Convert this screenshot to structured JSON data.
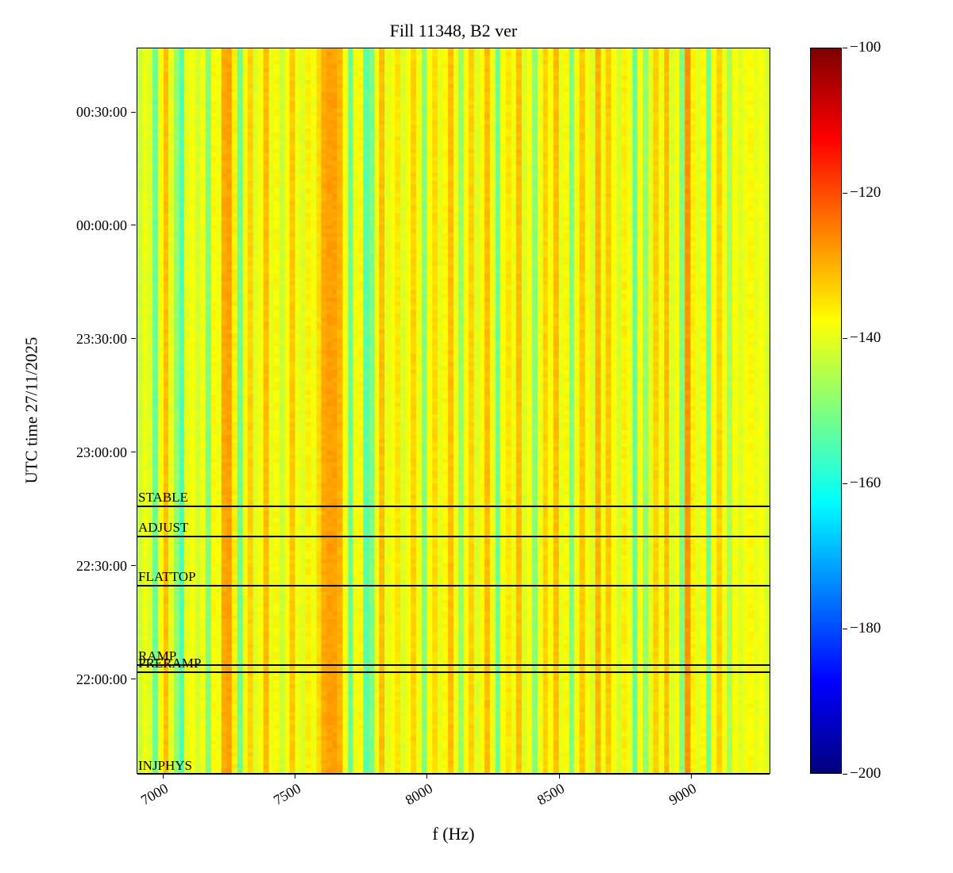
{
  "chart_data": {
    "type": "heatmap",
    "title": "Fill 11348, B2 ver",
    "xlabel": "f (Hz)",
    "ylabel": "UTC time 27/11/2025",
    "x_range_hz": [
      6900,
      9300
    ],
    "x_ticks": [
      7000,
      7500,
      8000,
      8500,
      9000
    ],
    "y_range": [
      "21:35:00",
      "00:47:00"
    ],
    "y_ticks": [
      "22:00:00",
      "22:30:00",
      "23:00:00",
      "23:30:00",
      "00:00:00",
      "00:30:00"
    ],
    "colormap": "jet",
    "color_scale": {
      "min": -200,
      "max": -100,
      "ticks": [
        -100,
        -120,
        -140,
        -160,
        -180,
        -200
      ]
    },
    "beam_modes": [
      {
        "label": "STABLE",
        "time": "22:46:00"
      },
      {
        "label": "ADJUST",
        "time": "22:38:00"
      },
      {
        "label": "FLATTOP",
        "time": "22:25:00"
      },
      {
        "label": "RAMP",
        "time": "22:04:00"
      },
      {
        "label": "PRERAMP",
        "time": "22:02:00"
      },
      {
        "label": "INJPHYS",
        "time": "21:35:00"
      }
    ],
    "spectrum_columns_db": [
      -143,
      -139,
      -141,
      -152,
      -138,
      -131,
      -140,
      -148,
      -155,
      -140,
      -138,
      -142,
      -139,
      -150,
      -137,
      -139,
      -129,
      -128,
      -136,
      -152,
      -139,
      -133,
      -141,
      -138,
      -131,
      -140,
      -137,
      -143,
      -138,
      -132,
      -139,
      -141,
      -136,
      -139,
      -134,
      -129,
      -128,
      -128,
      -130,
      -138,
      -153,
      -139,
      -137,
      -154,
      -151,
      -139,
      -131,
      -140,
      -138,
      -135,
      -141,
      -138,
      -133,
      -139,
      -150,
      -138,
      -134,
      -140,
      -137,
      -131,
      -139,
      -148,
      -138,
      -133,
      -141,
      -138,
      -131,
      -139,
      -152,
      -138,
      -135,
      -139,
      -131,
      -141,
      -138,
      -149,
      -139,
      -133,
      -138,
      -131,
      -140,
      -137,
      -151,
      -139,
      -132,
      -138,
      -141,
      -130,
      -139,
      -132,
      -138,
      -142,
      -136,
      -139,
      -153,
      -138,
      -148,
      -140,
      -133,
      -139,
      -131,
      -141,
      -138,
      -150,
      -127,
      -136,
      -140,
      -137,
      -152,
      -138,
      -133,
      -139,
      -146,
      -138,
      -141,
      -139,
      -137,
      -140,
      -138,
      -141
    ]
  }
}
